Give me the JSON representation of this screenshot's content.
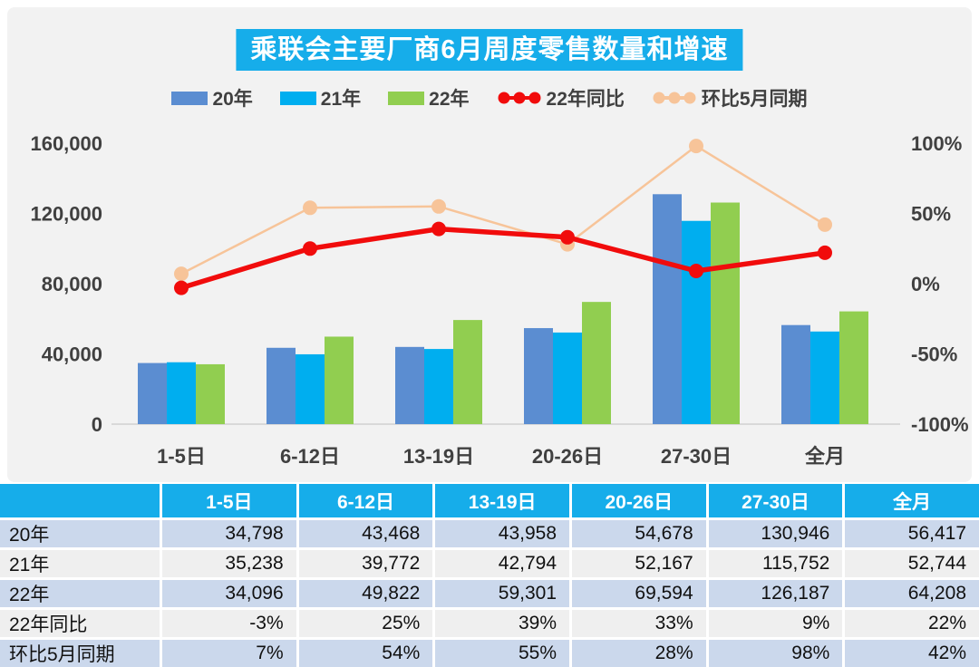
{
  "title": "乘联会主要厂商6月周度零售数量和增速",
  "legend": [
    {
      "label": "20年",
      "color": "#5B8DD1",
      "type": "bar"
    },
    {
      "label": "21年",
      "color": "#00AEEF",
      "type": "bar"
    },
    {
      "label": "22年",
      "color": "#91CE50",
      "type": "bar"
    },
    {
      "label": "22年同比",
      "color": "#F10C0C",
      "type": "line"
    },
    {
      "label": "环比5月同期",
      "color": "#F7C499",
      "type": "line"
    }
  ],
  "chart_data": {
    "type": "bar",
    "subtype": "bar+line combo, dual axis",
    "title": "乘联会主要厂商6月周度零售数量和增速",
    "categories": [
      "1-5日",
      "6-12日",
      "13-19日",
      "20-26日",
      "27-30日",
      "全月"
    ],
    "series": [
      {
        "name": "20年",
        "type": "bar",
        "axis": "left",
        "color": "#5B8DD1",
        "values": [
          34798,
          43468,
          43958,
          54678,
          130946,
          56417
        ]
      },
      {
        "name": "21年",
        "type": "bar",
        "axis": "left",
        "color": "#00AEEF",
        "values": [
          35238,
          39772,
          42794,
          52167,
          115752,
          52744
        ]
      },
      {
        "name": "22年",
        "type": "bar",
        "axis": "left",
        "color": "#91CE50",
        "values": [
          34096,
          49822,
          59301,
          69594,
          126187,
          64208
        ]
      },
      {
        "name": "22年同比",
        "type": "line",
        "axis": "right",
        "color": "#F10C0C",
        "values": [
          -3,
          25,
          39,
          33,
          9,
          22
        ]
      },
      {
        "name": "环比5月同期",
        "type": "line",
        "axis": "right",
        "color": "#F7C499",
        "values": [
          7,
          54,
          55,
          28,
          98,
          42
        ]
      }
    ],
    "left_axis": {
      "ticks": [
        "0",
        "40,000",
        "80,000",
        "120,000",
        "160,000"
      ],
      "min": 0,
      "max": 160000
    },
    "right_axis": {
      "ticks": [
        "-100%",
        "-50%",
        "0%",
        "50%",
        "100%"
      ],
      "min": -100,
      "max": 100
    },
    "grid": false,
    "legend_position": "top"
  },
  "table": {
    "header": [
      "",
      "1-5日",
      "6-12日",
      "13-19日",
      "20-26日",
      "27-30日",
      "全月"
    ],
    "rows": [
      {
        "label": "20年",
        "values": [
          "34,798",
          "43,468",
          "43,958",
          "54,678",
          "130,946",
          "56,417"
        ]
      },
      {
        "label": "21年",
        "values": [
          "35,238",
          "39,772",
          "42,794",
          "52,167",
          "115,752",
          "52,744"
        ]
      },
      {
        "label": "22年",
        "values": [
          "34,096",
          "49,822",
          "59,301",
          "69,594",
          "126,187",
          "64,208"
        ]
      },
      {
        "label": "22年同比",
        "values": [
          "-3%",
          "25%",
          "39%",
          "33%",
          "9%",
          "22%"
        ]
      },
      {
        "label": "环比5月同期",
        "values": [
          "7%",
          "54%",
          "55%",
          "28%",
          "98%",
          "42%"
        ]
      }
    ]
  },
  "colors": {
    "title_bg": "#16ADEA",
    "table_header_bg": "#16ADEA",
    "panel_bg": "#F2F2F2",
    "table_row_blue": "#CBD8EC",
    "table_row_gray": "#EFEFEF",
    "axis_text": "#404040",
    "baseline": "#D9D9D9"
  }
}
